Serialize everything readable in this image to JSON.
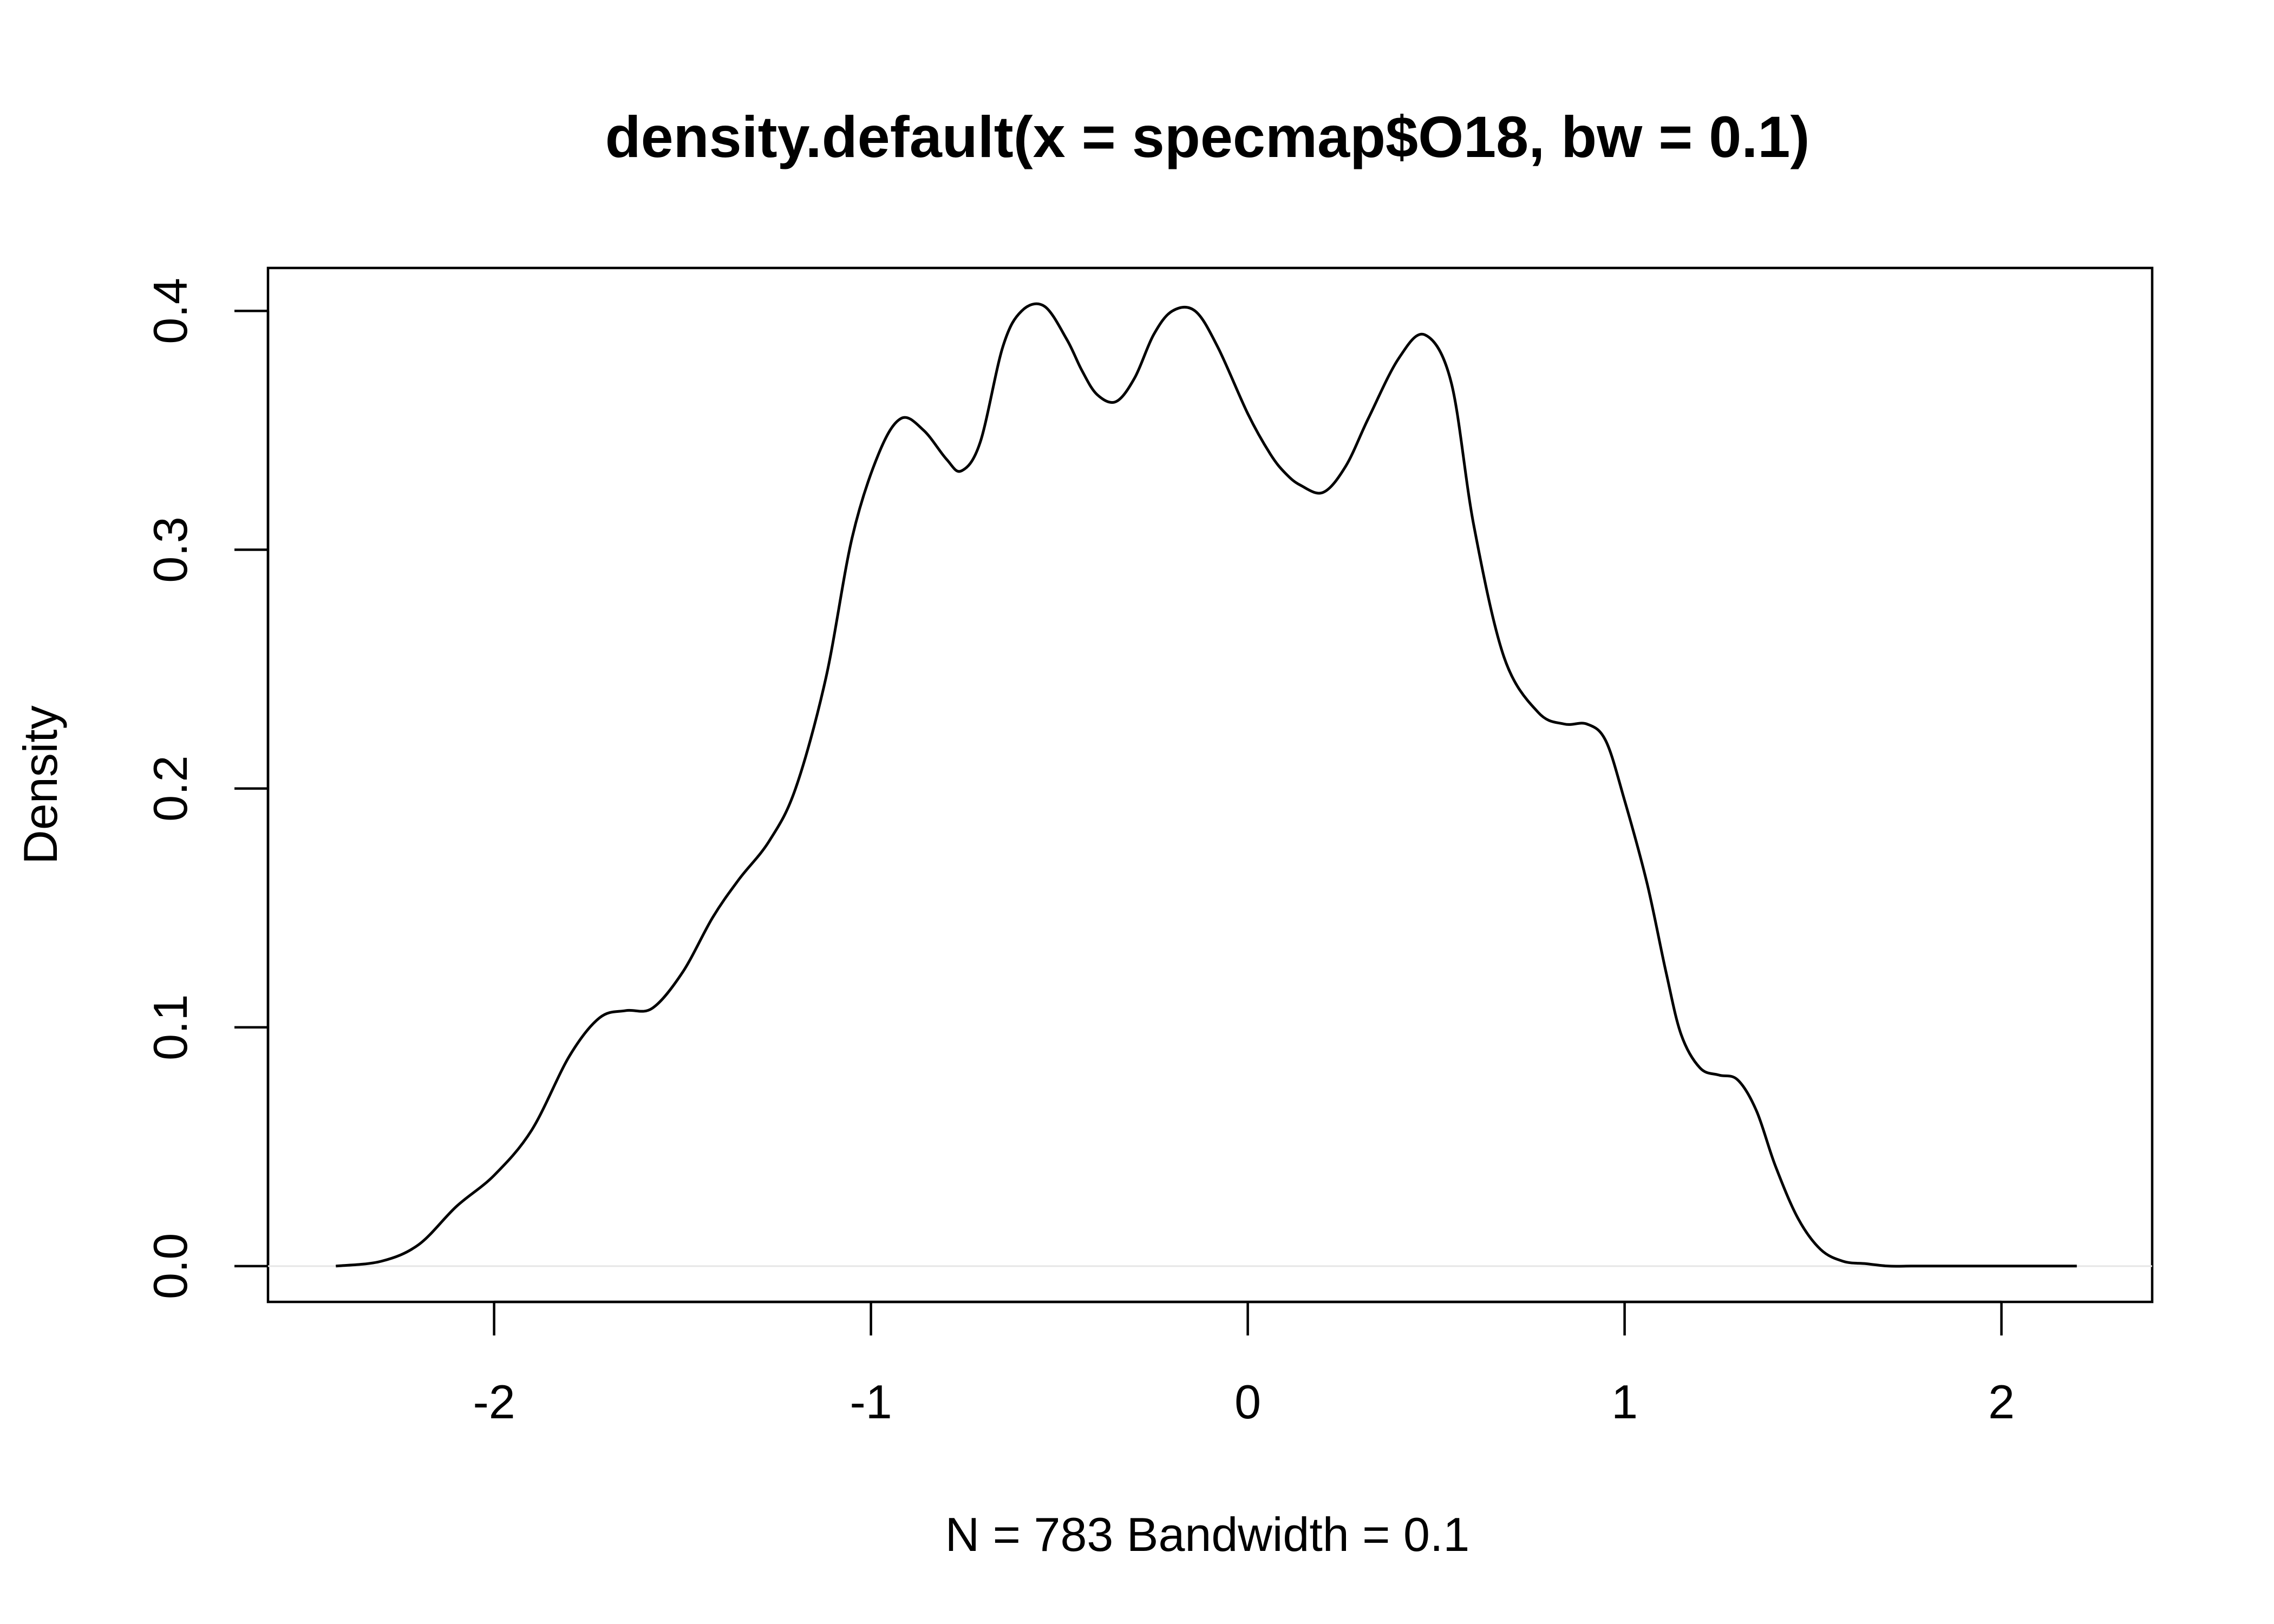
{
  "chart_data": {
    "type": "line",
    "title": "density.default(x = specmap$O18, bw = 0.1)",
    "xlabel": "N = 783   Bandwidth = 0.1",
    "ylabel": "Density",
    "xlim": [
      -2.6,
      2.4
    ],
    "ylim": [
      -0.015,
      0.418
    ],
    "x_ticks": [
      -2,
      -1,
      0,
      1,
      2
    ],
    "x_tick_labels": [
      "-2",
      "-1",
      "0",
      "1",
      "2"
    ],
    "y_ticks": [
      0.0,
      0.1,
      0.2,
      0.3,
      0.4
    ],
    "y_tick_labels": [
      "0.0",
      "0.1",
      "0.2",
      "0.3",
      "0.4"
    ],
    "grid": false,
    "zero_line": true,
    "line_color": "#000000",
    "zero_line_color": "#e6e6e6",
    "series": [
      {
        "x": [
          -2.42,
          -2.3,
          -2.2,
          -2.1,
          -2.0,
          -1.9,
          -1.8,
          -1.72,
          -1.65,
          -1.58,
          -1.5,
          -1.42,
          -1.35,
          -1.27,
          -1.2,
          -1.12,
          -1.05,
          -0.98,
          -0.92,
          -0.86,
          -0.8,
          -0.76,
          -0.71,
          -0.65,
          -0.6,
          -0.54,
          -0.48,
          -0.44,
          -0.4,
          -0.35,
          -0.3,
          -0.25,
          -0.2,
          -0.14,
          -0.08,
          0.0,
          0.06,
          0.1,
          0.14,
          0.2,
          0.26,
          0.32,
          0.4,
          0.47,
          0.54,
          0.6,
          0.68,
          0.77,
          0.84,
          0.9,
          0.95,
          1.0,
          1.06,
          1.11,
          1.15,
          1.2,
          1.25,
          1.3,
          1.35,
          1.4,
          1.46,
          1.52,
          1.58,
          1.64,
          1.7,
          1.76,
          1.82,
          1.88,
          1.95,
          2.02,
          2.1,
          2.2
        ],
        "y": [
          0.0,
          0.002,
          0.009,
          0.025,
          0.038,
          0.057,
          0.088,
          0.104,
          0.107,
          0.108,
          0.123,
          0.146,
          0.162,
          0.178,
          0.2,
          0.246,
          0.305,
          0.34,
          0.355,
          0.35,
          0.338,
          0.333,
          0.345,
          0.385,
          0.4,
          0.402,
          0.388,
          0.375,
          0.365,
          0.362,
          0.372,
          0.39,
          0.4,
          0.4,
          0.385,
          0.357,
          0.34,
          0.332,
          0.327,
          0.324,
          0.335,
          0.355,
          0.38,
          0.39,
          0.37,
          0.31,
          0.255,
          0.232,
          0.227,
          0.227,
          0.22,
          0.195,
          0.16,
          0.123,
          0.097,
          0.083,
          0.08,
          0.078,
          0.065,
          0.042,
          0.02,
          0.007,
          0.002,
          0.001,
          0.0,
          0.0,
          0.0,
          0.0,
          0.0,
          0.0,
          0.0,
          0.0
        ]
      }
    ]
  }
}
